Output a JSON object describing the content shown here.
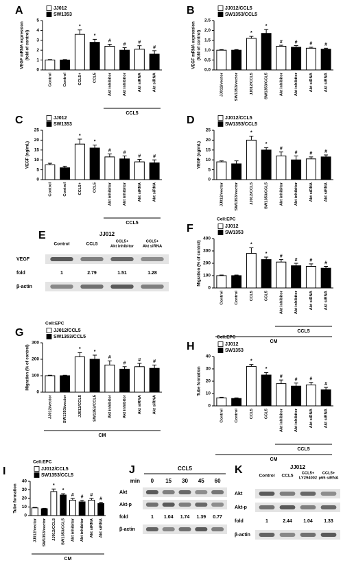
{
  "chart_data": [
    {
      "type": "bar",
      "letter": "A",
      "ylabel": [
        "VEGF mRNA expression",
        "(fold of control)"
      ],
      "categories": [
        "Control",
        "Control",
        "CCL5+",
        "CCL5",
        "Akt inhibitor",
        "Akt inhibitor",
        "Akt siRNA",
        "Akt siRNA"
      ],
      "series": [
        {
          "name": "JJ012",
          "color": "#ffffff",
          "values": [
            1,
            null,
            3.6,
            null,
            2.4,
            null,
            2.1,
            null
          ],
          "errors": [
            0.05,
            null,
            0.45,
            null,
            0.2,
            null,
            0.35,
            null
          ]
        },
        {
          "name": "SW1353",
          "color": "#000000",
          "values": [
            null,
            1,
            null,
            2.8,
            null,
            2.0,
            null,
            1.6
          ],
          "errors": [
            null,
            0.05,
            null,
            0.3,
            null,
            0.25,
            null,
            0.35
          ]
        }
      ],
      "annotations": [
        null,
        null,
        "*",
        "*",
        "#",
        "#",
        "#",
        "#"
      ],
      "treatment_label": "CCL5",
      "ylim": [
        0,
        5
      ],
      "yticks": [
        0,
        1,
        2,
        3,
        4,
        5
      ]
    },
    {
      "type": "bar",
      "letter": "B",
      "ylabel": [
        "VEGF mRNA expression",
        "(fold of control)"
      ],
      "categories": [
        "JJ012/vector",
        "SW1353/vector",
        "JJ012/CCL5",
        "SW1353/CCL5",
        "Akt inhibitor",
        "Akt inhibitor",
        "Akt siRNA",
        "Akt siRNA"
      ],
      "series": [
        {
          "name": "JJ012/CCL5",
          "color": "#ffffff",
          "values": [
            1,
            null,
            1.6,
            null,
            1.2,
            null,
            1.1,
            null
          ],
          "errors": [
            0.03,
            null,
            0.1,
            null,
            0.05,
            null,
            0.05,
            null
          ]
        },
        {
          "name": "SW1353/CCL5",
          "color": "#000000",
          "values": [
            null,
            1,
            null,
            1.85,
            null,
            1.15,
            null,
            1.05
          ],
          "errors": [
            null,
            0.03,
            null,
            0.2,
            null,
            0.08,
            null,
            0.05
          ]
        }
      ],
      "annotations": [
        null,
        null,
        "*",
        "*",
        "#",
        "#",
        "#",
        "#"
      ],
      "ylim": [
        0,
        2.5
      ],
      "yticks": [
        {
          "value": 0,
          "label": "0.0"
        },
        0.5,
        {
          "value": 1,
          "label": "1.0"
        },
        1.5,
        {
          "value": 2,
          "label": "2.0"
        },
        2.5
      ]
    },
    {
      "type": "bar",
      "letter": "C",
      "ylabel": "VEGF (ng/mL)",
      "categories": [
        "Control",
        "Control",
        "CCL5+",
        "CCL5",
        "Akt inhibitor",
        "Akt inhibitor",
        "Akt siRNA",
        "Akt siRNA"
      ],
      "series": [
        {
          "name": "JJ012",
          "color": "#ffffff",
          "values": [
            7.5,
            null,
            18,
            null,
            11.5,
            null,
            9,
            null
          ],
          "errors": [
            0.8,
            null,
            2.5,
            null,
            1.5,
            null,
            1.2,
            null
          ]
        },
        {
          "name": "SW1353",
          "color": "#000000",
          "values": [
            null,
            6,
            null,
            16,
            null,
            10.5,
            null,
            8.5
          ],
          "errors": [
            null,
            0.8,
            null,
            1.5,
            null,
            1.5,
            null,
            1.5
          ]
        }
      ],
      "annotations": [
        null,
        null,
        "*",
        "*",
        "#",
        "#",
        "#",
        "#"
      ],
      "treatment_label": "CCL5",
      "ylim": [
        0,
        25
      ],
      "yticks": [
        0,
        5,
        10,
        15,
        20,
        25
      ]
    },
    {
      "type": "bar",
      "letter": "D",
      "ylabel": "VEGF (ng/mL)",
      "categories": [
        "JJ012/vector",
        "SW1353/vector",
        "JJ012/CCL5",
        "SW1353/CCL5",
        "Akt inhibitor",
        "Akt inhibitor",
        "Akt siRNA",
        "Akt siRNA"
      ],
      "series": [
        {
          "name": "JJ012/CCL5",
          "color": "#ffffff",
          "values": [
            9,
            null,
            20,
            null,
            12,
            null,
            10.5,
            null
          ],
          "errors": [
            0.5,
            null,
            2,
            null,
            2,
            null,
            1,
            null
          ]
        },
        {
          "name": "SW1353/CCL5",
          "color": "#000000",
          "values": [
            null,
            8,
            null,
            15,
            null,
            10,
            null,
            11.5
          ],
          "errors": [
            null,
            1.5,
            null,
            1.2,
            null,
            2,
            null,
            1
          ]
        }
      ],
      "annotations": [
        null,
        null,
        "*",
        "*",
        "#",
        "#",
        "#",
        "#"
      ],
      "ylim": [
        0,
        25
      ],
      "yticks": [
        0,
        5,
        10,
        15,
        20,
        25
      ]
    },
    {
      "type": "bar",
      "letter": "F",
      "note": "Cell:EPC",
      "ylabel": "Migration (% of control)",
      "categories": [
        "Control",
        "Control",
        "CCL5",
        "CCL5",
        "Akt inhibitor",
        "Akt inhibitor",
        "Akt siRNA",
        "Akt siRNA"
      ],
      "series": [
        {
          "name": "JJ012",
          "color": "#ffffff",
          "values": [
            100,
            null,
            280,
            null,
            210,
            null,
            175,
            null
          ],
          "errors": [
            5,
            null,
            45,
            null,
            20,
            null,
            20,
            null
          ]
        },
        {
          "name": "SW1353",
          "color": "#000000",
          "values": [
            null,
            100,
            null,
            230,
            null,
            180,
            null,
            160
          ],
          "errors": [
            null,
            5,
            null,
            20,
            null,
            20,
            null,
            15
          ]
        }
      ],
      "annotations": [
        null,
        null,
        "*",
        "*",
        "#",
        "#",
        "#",
        "#"
      ],
      "treatment_label": "CCL5",
      "medium_label": "CM",
      "ylim": [
        0,
        400
      ],
      "yticks": [
        0,
        100,
        200,
        300,
        400
      ]
    },
    {
      "type": "bar",
      "letter": "G",
      "note": "Cell:EPC",
      "ylabel": "Migration (% of control)",
      "categories": [
        "JJ012/vector",
        "SW1353/vector",
        "JJ012/CCL5",
        "SW1353/CCL5",
        "Akt inhibitor",
        "Akt inhibitor",
        "Akt siRNA",
        "Akt siRNA"
      ],
      "series": [
        {
          "name": "JJ012/CCL5",
          "color": "#ffffff",
          "values": [
            100,
            null,
            215,
            null,
            165,
            null,
            155,
            null
          ],
          "errors": [
            3,
            null,
            25,
            null,
            25,
            null,
            20,
            null
          ]
        },
        {
          "name": "SW1353/CCL5",
          "color": "#000000",
          "values": [
            null,
            100,
            null,
            200,
            null,
            140,
            null,
            145
          ],
          "errors": [
            null,
            3,
            null,
            25,
            null,
            15,
            null,
            20
          ]
        }
      ],
      "annotations": [
        null,
        null,
        "*",
        "*",
        "#",
        "#",
        "#",
        "#"
      ],
      "medium_label": "CM",
      "ylim": [
        0,
        300
      ],
      "yticks": [
        0,
        100,
        200,
        300
      ]
    },
    {
      "type": "bar",
      "letter": "H",
      "note": "Cell:EPC",
      "ylabel": "Tube formation",
      "categories": [
        "Control",
        "Control",
        "CCL5",
        "CCL5",
        "Akt inhibitor",
        "Akt inhibitor",
        "Akt siRNA",
        "Akt siRNA"
      ],
      "series": [
        {
          "name": "JJ012",
          "color": "#ffffff",
          "values": [
            6.5,
            null,
            32,
            null,
            18,
            null,
            17,
            null
          ],
          "errors": [
            0.5,
            null,
            1.5,
            null,
            3,
            null,
            2,
            null
          ]
        },
        {
          "name": "SW1353",
          "color": "#000000",
          "values": [
            null,
            6,
            null,
            25,
            null,
            16,
            null,
            13
          ],
          "errors": [
            null,
            0.5,
            null,
            2,
            null,
            2.5,
            null,
            2
          ]
        }
      ],
      "annotations": [
        null,
        null,
        "*",
        "*",
        "#",
        "#",
        "#",
        "#"
      ],
      "treatment_label": "CCL5",
      "medium_label": "CM",
      "ylim": [
        0,
        40
      ],
      "yticks": [
        0,
        10,
        20,
        30,
        40
      ]
    },
    {
      "type": "bar",
      "letter": "I",
      "note": "Cell:EPC",
      "ylabel": "Tube formation",
      "categories": [
        "JJ012/vector",
        "SW1353/vector",
        "JJ012/CCL5",
        "SW1353/CCL5",
        "Akt inhibitor",
        "Akt inhibitor",
        "Akt siRNA",
        "Akt siRNA"
      ],
      "series": [
        {
          "name": "JJ012/CCL5",
          "color": "#ffffff",
          "values": [
            9,
            null,
            28,
            null,
            18,
            null,
            18,
            null
          ],
          "errors": [
            0.5,
            null,
            3,
            null,
            2,
            null,
            2,
            null
          ]
        },
        {
          "name": "SW1353/CCL5",
          "color": "#000000",
          "values": [
            null,
            8,
            null,
            24,
            null,
            16,
            null,
            14
          ],
          "errors": [
            null,
            0.5,
            null,
            1.5,
            null,
            2,
            null,
            1.5
          ]
        }
      ],
      "annotations": [
        null,
        null,
        "*",
        "*",
        "#",
        "#",
        "#",
        "#"
      ],
      "medium_label": "CM",
      "ylim": [
        0,
        40
      ],
      "yticks": [
        0,
        10,
        20,
        30,
        40
      ]
    }
  ],
  "blots": [
    {
      "letter": "E",
      "header": "JJ012",
      "columns": [
        "Control",
        "CCL5",
        [
          "CCL5+",
          "Akt inhibitor"
        ],
        [
          "CCL5+",
          "Akt siRNA"
        ]
      ],
      "rows": [
        {
          "label": "VEGF"
        },
        {
          "label": "fold",
          "values": [
            1,
            2.79,
            1.51,
            1.28
          ]
        },
        {
          "label": "β-actin"
        }
      ]
    },
    {
      "letter": "J",
      "header": "CCL5",
      "column_title": "min",
      "columns": [
        0,
        15,
        30,
        45,
        60
      ],
      "rows": [
        {
          "label": "Akt"
        },
        {
          "label": "Akt-p"
        },
        {
          "label": "fold",
          "values": [
            1,
            1.04,
            1.74,
            1.39,
            0.77
          ]
        },
        {
          "label": "β-actin"
        }
      ]
    },
    {
      "letter": "K",
      "header": "JJ012",
      "columns": [
        "Control",
        "CCL5",
        [
          "CCL5+",
          "LY294002"
        ],
        [
          "CCL5+",
          "p65 siRNA"
        ]
      ],
      "rows": [
        {
          "label": "Akt"
        },
        {
          "label": "Akt-p"
        },
        {
          "label": "fold",
          "values": [
            1,
            2.44,
            1.04,
            1.33
          ]
        },
        {
          "label": "β-actin"
        }
      ]
    }
  ]
}
